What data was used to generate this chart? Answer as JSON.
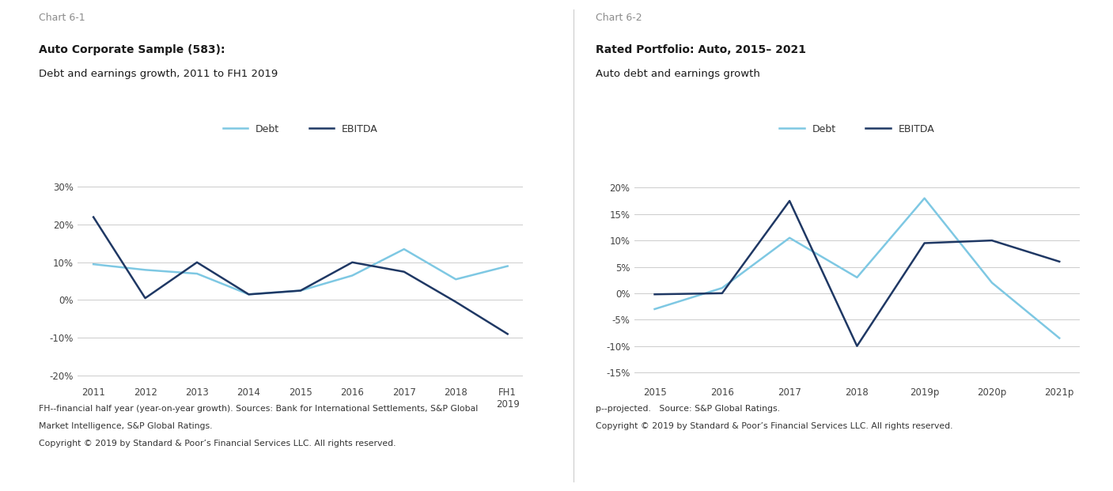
{
  "chart1": {
    "chart_label": "Chart 6-1",
    "title_bold": "Auto Corporate Sample (583):",
    "title_sub": "Debt and earnings growth, 2011 to FH1 2019",
    "x_labels": [
      "2011",
      "2012",
      "2013",
      "2014",
      "2015",
      "2016",
      "2017",
      "2018",
      "FH1\n2019"
    ],
    "x_numeric": [
      0,
      1,
      2,
      3,
      4,
      5,
      6,
      7,
      8
    ],
    "debt_values": [
      9.5,
      8.0,
      7.0,
      1.5,
      2.5,
      6.5,
      13.5,
      5.5,
      9.0
    ],
    "ebitda_values": [
      22.0,
      0.5,
      10.0,
      1.5,
      2.5,
      10.0,
      7.5,
      -0.5,
      -9.0
    ],
    "ylim": [
      -22,
      34
    ],
    "yticks": [
      -20,
      -10,
      0,
      10,
      20,
      30
    ],
    "ytick_labels": [
      "-20%",
      "-10%",
      "0%",
      "10%",
      "20%",
      "30%"
    ],
    "footnote1": "FH--financial half year (year-on-year growth). Sources: Bank for International Settlements, S&P Global",
    "footnote2": "Market Intelligence, S&P Global Ratings.",
    "footnote3": "Copyright © 2019 by Standard & Poor’s Financial Services LLC. All rights reserved."
  },
  "chart2": {
    "chart_label": "Chart 6-2",
    "title_bold": "Rated Portfolio: Auto, 2015– 2021",
    "title_sub": "Auto debt and earnings growth",
    "x_labels": [
      "2015",
      "2016",
      "2017",
      "2018",
      "2019p",
      "2020p",
      "2021p"
    ],
    "x_numeric": [
      0,
      1,
      2,
      3,
      4,
      5,
      6
    ],
    "debt_values": [
      -3.0,
      1.0,
      10.5,
      3.0,
      18.0,
      2.0,
      -8.5
    ],
    "ebitda_values": [
      -0.2,
      0.0,
      17.5,
      -10.0,
      9.5,
      10.0,
      6.0
    ],
    "ylim": [
      -17,
      23
    ],
    "yticks": [
      -15,
      -10,
      -5,
      0,
      5,
      10,
      15,
      20
    ],
    "ytick_labels": [
      "-15%",
      "-10%",
      "-5%",
      "0%",
      "5%",
      "10%",
      "15%",
      "20%"
    ],
    "footnote1": "p--projected.   Source: S&P Global Ratings.",
    "footnote2": "Copyright © 2019 by Standard & Poor’s Financial Services LLC. All rights reserved."
  },
  "debt_color_light": "#7EC8E3",
  "ebitda_color_dark": "#1F3864",
  "chart_label_color": "#8C8C8C",
  "grid_color": "#CCCCCC",
  "background_color": "#FFFFFF",
  "line_width": 1.8,
  "legend_debt_label": "Debt",
  "legend_ebitda_label": "EBITDA"
}
